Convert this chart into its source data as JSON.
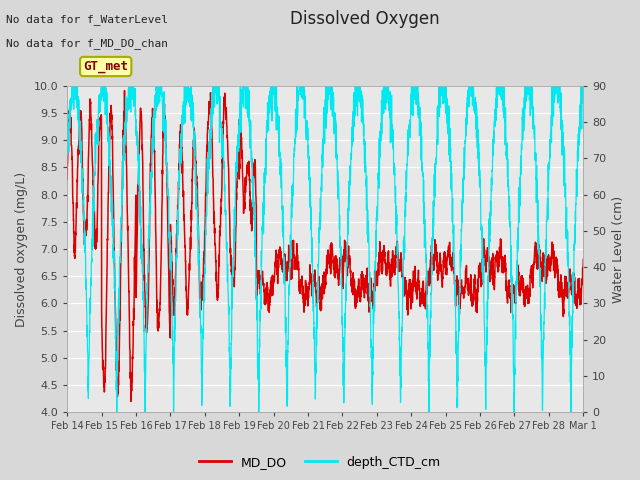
{
  "title": "Dissolved Oxygen",
  "ylabel_left": "Dissolved oxygen (mg/L)",
  "ylabel_right": "Water Level (cm)",
  "ylim_left": [
    4.0,
    10.0
  ],
  "ylim_right": [
    0,
    90
  ],
  "bg_color": "#d8d8d8",
  "plot_bg_color": "#e8e8e8",
  "text_color": "#444444",
  "red_color": "#dd0000",
  "cyan_color": "#00e8f0",
  "annotation1": "No data for f_WaterLevel",
  "annotation2": "No data for f_MD_DO_chan",
  "box_label": "GT_met",
  "legend_labels": [
    "MD_DO",
    "depth_CTD_cm"
  ],
  "xtick_labels": [
    "Feb 14",
    "Feb 15",
    "Feb 16",
    "Feb 17",
    "Feb 18",
    "Feb 19",
    "Feb 20",
    "Feb 21",
    "Feb 22",
    "Feb 23",
    "Feb 24",
    "Feb 25",
    "Feb 26",
    "Feb 27",
    "Feb 28",
    "Mar 1"
  ],
  "yticks_left": [
    4.0,
    4.5,
    5.0,
    5.5,
    6.0,
    6.5,
    7.0,
    7.5,
    8.0,
    8.5,
    9.0,
    9.5,
    10.0
  ],
  "yticks_right": [
    0,
    10,
    20,
    30,
    40,
    50,
    60,
    70,
    80,
    90
  ],
  "figsize": [
    6.4,
    4.8
  ],
  "dpi": 100
}
